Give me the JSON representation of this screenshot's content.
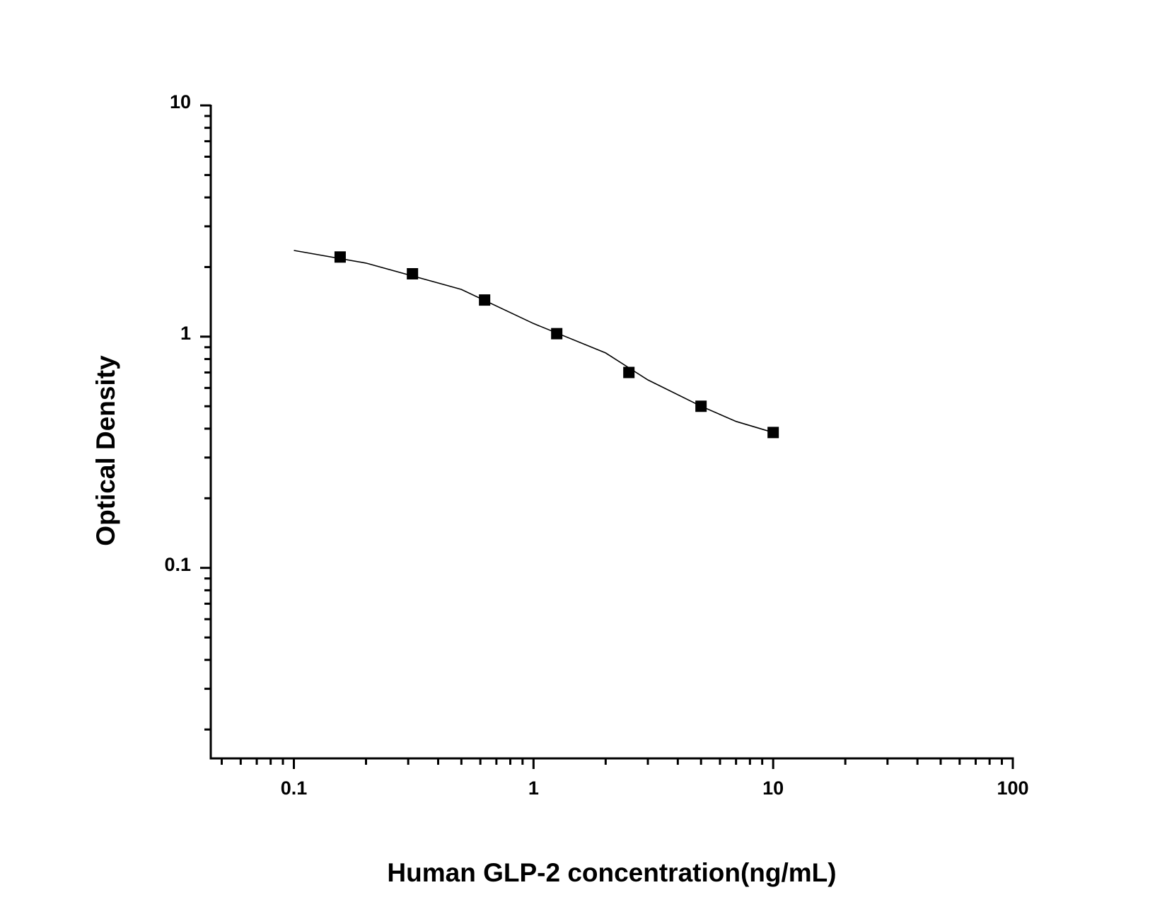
{
  "chart_data": {
    "type": "scatter",
    "x_label": "Human GLP-2 concentration(ng/mL)",
    "y_label": "Optical Density",
    "xscale": "log",
    "yscale": "log",
    "xlim": [
      0.045,
      100
    ],
    "ylim": [
      0.015,
      10
    ],
    "xticks": [
      0.1,
      1,
      10,
      100
    ],
    "yticks": [
      0.1,
      1,
      10
    ],
    "xminorticks": [
      0.05,
      0.06,
      0.07,
      0.08,
      0.09,
      0.2,
      0.3,
      0.4,
      0.5,
      0.6,
      0.7,
      0.8,
      0.9,
      2,
      3,
      4,
      5,
      6,
      7,
      8,
      9,
      20,
      30,
      40,
      50,
      60,
      70,
      80,
      90
    ],
    "yminorticks": [
      0.02,
      0.03,
      0.04,
      0.05,
      0.06,
      0.07,
      0.08,
      0.09,
      0.2,
      0.3,
      0.4,
      0.5,
      0.6,
      0.7,
      0.8,
      0.9,
      2,
      3,
      4,
      5,
      6,
      7,
      8,
      9
    ],
    "series": [
      {
        "color": "#000000",
        "marker": "square",
        "x": [
          0.156,
          0.3125,
          0.625,
          1.25,
          2.5,
          5,
          10
        ],
        "values": [
          2.21,
          1.87,
          1.44,
          1.03,
          0.7,
          0.5,
          0.385
        ]
      },
      {
        "color": "#000000",
        "marker": "line",
        "x": [
          0.1,
          0.2,
          0.5,
          1,
          2,
          3,
          5,
          7,
          10
        ],
        "values": [
          2.36,
          2.08,
          1.6,
          1.14,
          0.85,
          0.65,
          0.5,
          0.43,
          0.385
        ]
      }
    ]
  }
}
